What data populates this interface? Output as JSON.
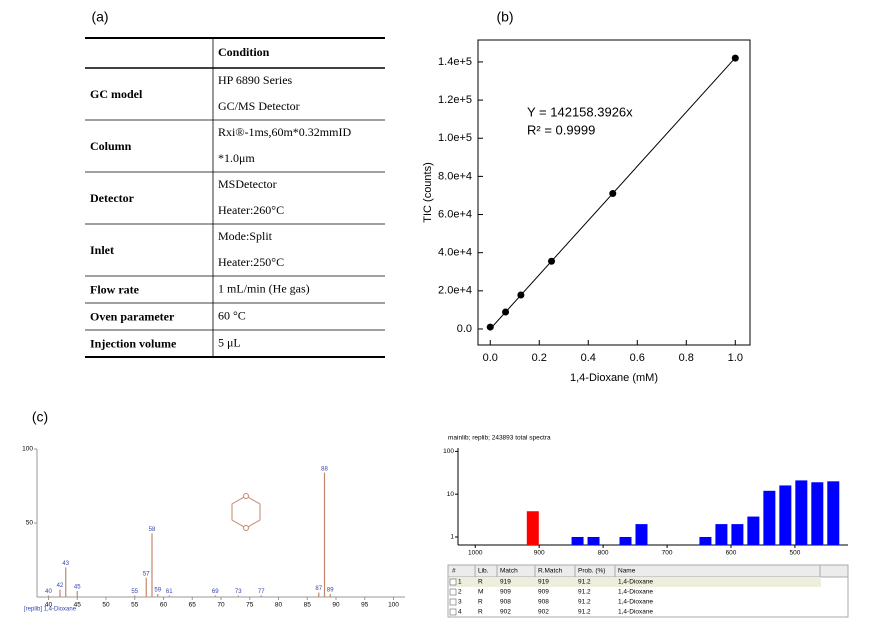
{
  "panel_labels": [
    "(a)",
    "(b)",
    "(c)"
  ],
  "table": {
    "header": "Condition",
    "rows": [
      {
        "label": "GC model",
        "lines": [
          "HP 6890 Series",
          "GC/MS Detector"
        ]
      },
      {
        "label": "Column",
        "lines": [
          "Rxi®-1ms,60m*0.32mmID",
          "*1.0μm"
        ]
      },
      {
        "label": "Detector",
        "lines": [
          "MSDetector",
          "Heater:260°C"
        ]
      },
      {
        "label": "Inlet",
        "lines": [
          "Mode:Split",
          "Heater:250°C"
        ]
      },
      {
        "label": "Flow rate",
        "lines": [
          "1 mL/min (He gas)"
        ]
      },
      {
        "label": "Oven parameter",
        "lines": [
          "60 °C"
        ]
      },
      {
        "label": "Injection volume",
        "lines": [
          "5 μL"
        ]
      }
    ]
  },
  "chart_data": [
    {
      "type": "scatter",
      "x_label": "1,4-Dioxane (mM)",
      "y_label": "TIC (counts)",
      "x": [
        0,
        0.0625,
        0.125,
        0.25,
        0.5,
        1.0
      ],
      "values": [
        1000,
        8900,
        17800,
        35500,
        71000,
        142000
      ],
      "color": "#000000",
      "fit_slope": 142158.3926,
      "annotations": [
        "Y = 142158.3926x",
        "R² = 0.9999"
      ],
      "xlim": [
        -0.05,
        1.06
      ],
      "ylim": [
        -8400,
        151500
      ],
      "xticks": [
        {
          "value": 0,
          "label": "0.0"
        },
        0.2,
        0.4,
        0.6,
        0.8,
        {
          "value": 1,
          "label": "1.0"
        }
      ],
      "yticks": [
        {
          "value": 0,
          "label": "0.0"
        },
        {
          "value": 20000,
          "label": "2.0e+4"
        },
        {
          "value": 40000,
          "label": "4.0e+4"
        },
        {
          "value": 60000,
          "label": "6.0e+4"
        },
        {
          "value": 80000,
          "label": "8.0e+4"
        },
        {
          "value": 100000,
          "label": "1.0e+5"
        },
        {
          "value": 120000,
          "label": "1.2e+5"
        },
        {
          "value": 140000,
          "label": "1.4e+5"
        }
      ]
    },
    {
      "type": "stem",
      "caption": "[replib] 1,4-Dioxane",
      "x": [
        40,
        42,
        43,
        45,
        55,
        57,
        58,
        59,
        61,
        69,
        73,
        77,
        87,
        88,
        89
      ],
      "values": [
        1,
        5,
        20,
        4,
        1,
        13,
        43,
        2,
        1,
        1,
        1,
        1,
        3,
        84,
        2
      ],
      "color": "#c4866a",
      "label_color": "#3344aa",
      "xlim": [
        38,
        102
      ],
      "ylim": [
        0,
        100
      ],
      "xticks": [
        40,
        45,
        50,
        55,
        60,
        65,
        70,
        75,
        80,
        85,
        90,
        95,
        100
      ],
      "yticks": [
        50,
        100
      ]
    },
    {
      "type": "bar",
      "title": "mainlib; replib;  243893 total spectra",
      "ylog": true,
      "x": [
        910,
        840,
        815,
        765,
        740,
        640,
        615,
        590,
        565,
        540,
        515,
        490,
        465,
        440
      ],
      "values": [
        4,
        1,
        1,
        1,
        2,
        1,
        2,
        2,
        3,
        12,
        16,
        21,
        19,
        20
      ],
      "colors": [
        "#ff0000",
        "#0000ff",
        "#0000ff",
        "#0000ff",
        "#0000ff",
        "#0000ff",
        "#0000ff",
        "#0000ff",
        "#0000ff",
        "#0000ff",
        "#0000ff",
        "#0000ff",
        "#0000ff",
        "#0000ff"
      ],
      "xlim": [
        1027,
        417
      ],
      "ylim": [
        0.65,
        120
      ],
      "xticks": [
        1000,
        900,
        800,
        700,
        600,
        500
      ],
      "yticks": [
        1,
        10,
        100
      ]
    }
  ],
  "library_table": {
    "columns": [
      "#",
      "Lib.",
      "Match",
      "R.Match",
      "Prob. (%)",
      "Name"
    ],
    "rows": [
      [
        "1",
        "R",
        "919",
        "919",
        "91.2",
        "1,4-Dioxane"
      ],
      [
        "2",
        "M",
        "909",
        "909",
        "91.2",
        "1,4-Dioxane"
      ],
      [
        "3",
        "R",
        "908",
        "908",
        "91.2",
        "1,4-Dioxane"
      ],
      [
        "4",
        "R",
        "902",
        "902",
        "91.2",
        "1,4-Dioxane"
      ]
    ]
  }
}
